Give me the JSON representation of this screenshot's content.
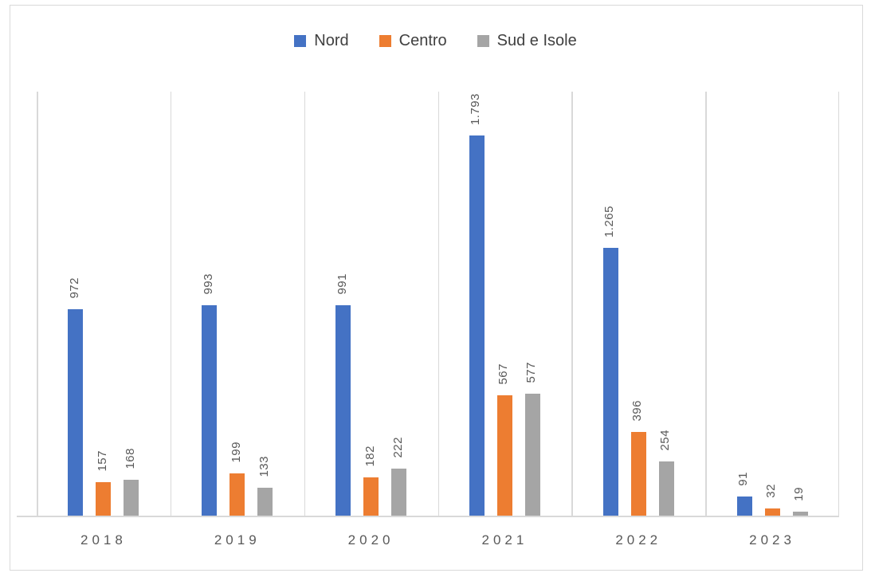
{
  "chart_data": {
    "type": "bar",
    "title": "",
    "xlabel": "",
    "ylabel": "",
    "categories": [
      "2018",
      "2019",
      "2020",
      "2021",
      "2022",
      "2023"
    ],
    "series": [
      {
        "name": "Nord",
        "color": "#4472C4",
        "values": [
          972,
          993,
          991,
          1793,
          1265,
          91
        ],
        "labels": [
          "972",
          "993",
          "991",
          "1.793",
          "1.265",
          "91"
        ]
      },
      {
        "name": "Centro",
        "color": "#ED7D31",
        "values": [
          157,
          199,
          182,
          567,
          396,
          32
        ],
        "labels": [
          "157",
          "199",
          "182",
          "567",
          "396",
          "32"
        ]
      },
      {
        "name": "Sud e Isole",
        "color": "#A5A5A5",
        "values": [
          168,
          133,
          222,
          577,
          254,
          19
        ],
        "labels": [
          "168",
          "133",
          "222",
          "577",
          "254",
          "19"
        ]
      }
    ],
    "ylim": [
      0,
      2000
    ],
    "grid": "vertical category separators only",
    "legend_position": "top-center",
    "data_labels": "rotated 90deg, outside end",
    "colors": {
      "gridline": "#D9D9D9",
      "axis_line": "#D9D9D9",
      "chart_border": "#D9D9D9",
      "data_label_text": "#595959",
      "axis_label_text": "#595959",
      "legend_text": "#404040",
      "background": "#FFFFFF"
    }
  }
}
